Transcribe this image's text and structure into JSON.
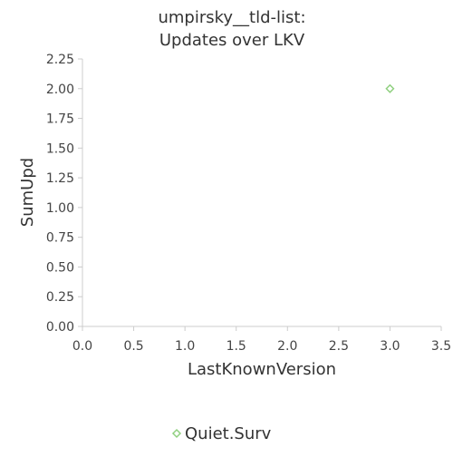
{
  "chart_data": {
    "type": "scatter",
    "title": [
      "umpirsky__tld-list:",
      "Updates over LKV"
    ],
    "xlabel": "LastKnownVersion",
    "ylabel": "SumUpd",
    "xlim": [
      0,
      3.5
    ],
    "ylim": [
      0,
      2.25
    ],
    "xticks": [
      "0.0",
      "0.5",
      "1.0",
      "1.5",
      "2.0",
      "2.5",
      "3.0",
      "3.5"
    ],
    "yticks": [
      "0.00",
      "0.25",
      "0.50",
      "0.75",
      "1.00",
      "1.25",
      "1.50",
      "1.75",
      "2.00",
      "2.25"
    ],
    "grid": false,
    "legend_position": "bottom",
    "series": [
      {
        "name": "Quiet.Surv",
        "color": "#90d080",
        "marker": "diamond-outline",
        "points": [
          {
            "x": 3.0,
            "y": 2.0
          }
        ]
      }
    ]
  }
}
